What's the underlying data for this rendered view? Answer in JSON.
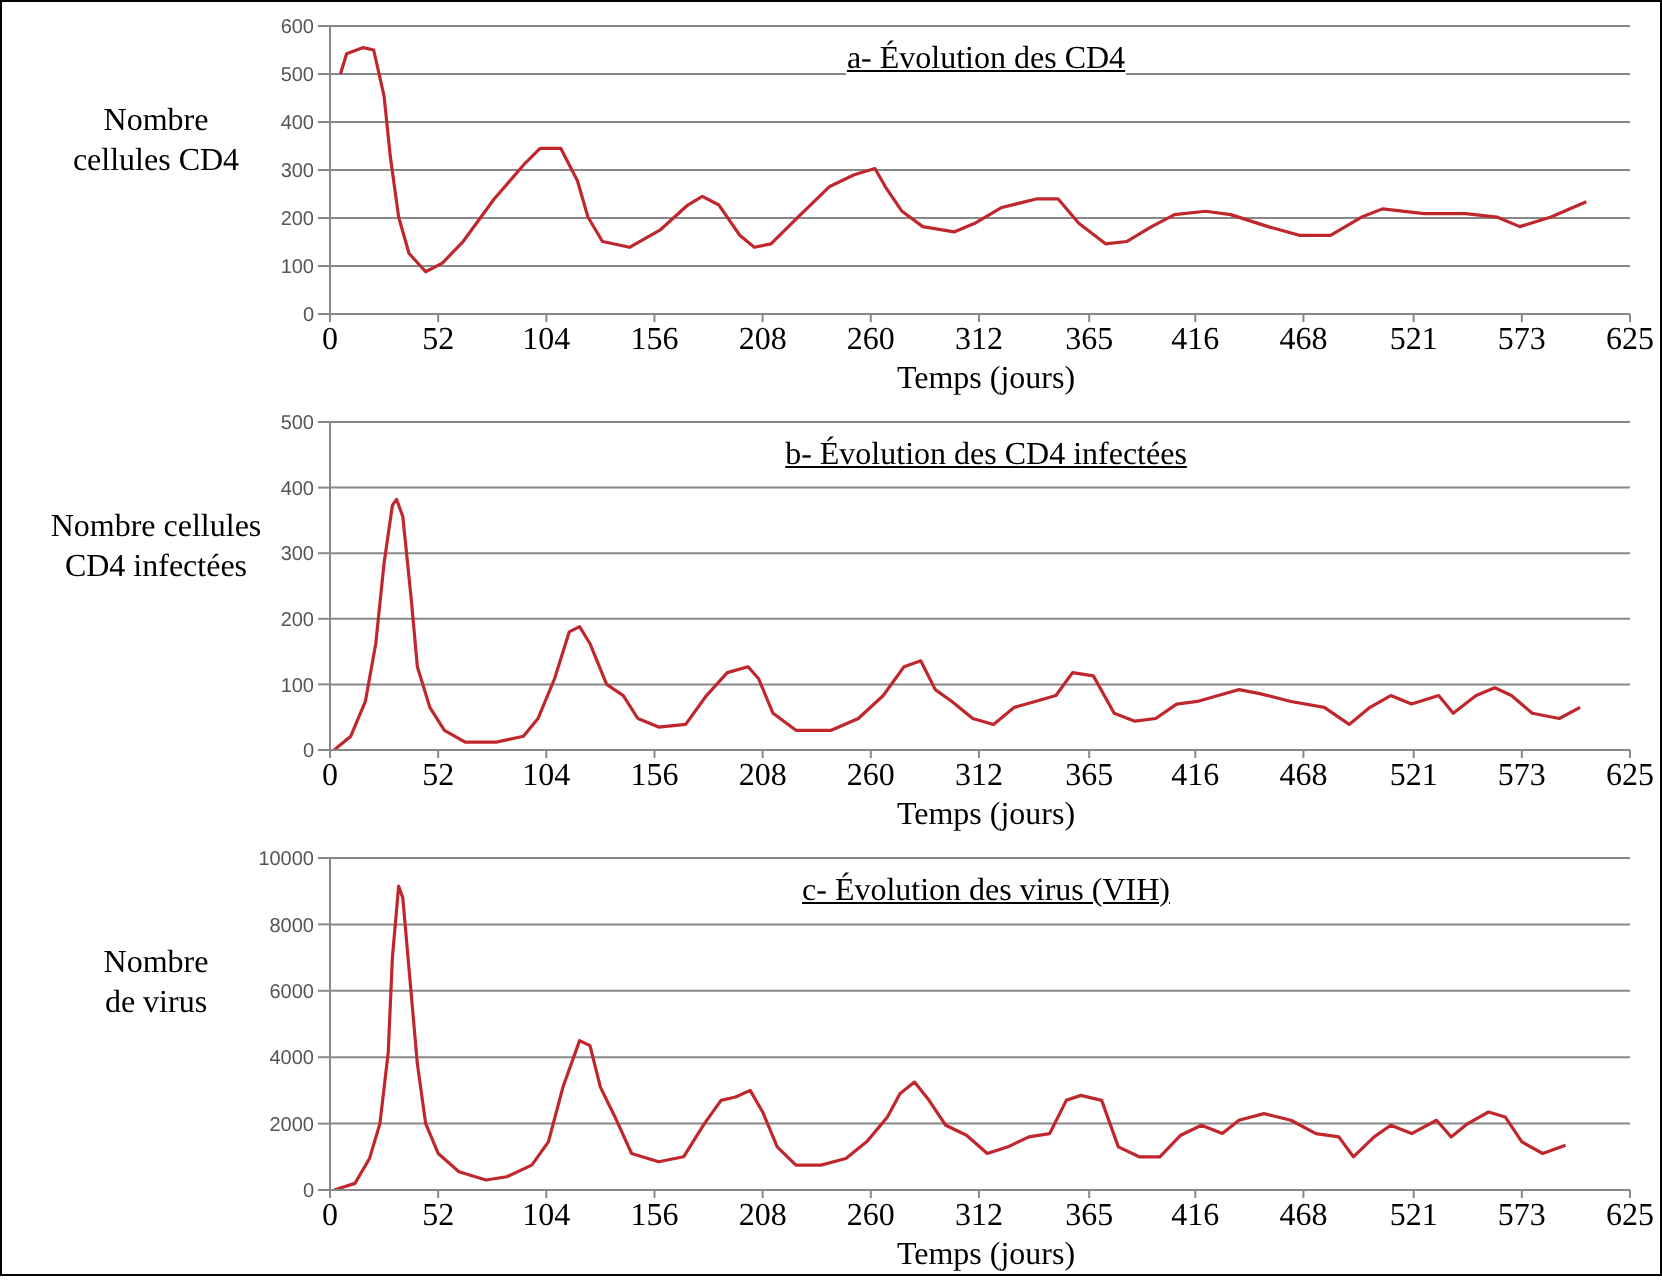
{
  "chart_data": [
    {
      "type": "line",
      "title": "a- Évolution des CD4",
      "xlabel": "Temps (jours)",
      "ylabel": "Nombre\ncellules CD4",
      "color": "#c0272d",
      "grid": "y",
      "xlim": [
        0,
        625
      ],
      "xticks": [
        0,
        52,
        104,
        156,
        208,
        260,
        312,
        365,
        416,
        468,
        521,
        573,
        625
      ],
      "ylim": [
        0,
        600
      ],
      "yticks": [
        0,
        100,
        200,
        300,
        400,
        500,
        600
      ],
      "x": [
        5,
        8,
        16,
        21,
        26,
        29,
        33,
        38,
        46,
        54,
        64,
        79,
        94,
        101,
        111,
        119,
        124,
        131,
        144,
        159,
        172,
        179,
        187,
        197,
        204,
        212,
        225,
        240,
        252,
        262,
        267,
        275,
        285,
        300,
        310,
        323,
        340,
        350,
        360,
        373,
        383,
        395,
        406,
        421,
        433,
        451,
        466,
        481,
        496,
        506,
        526,
        546,
        561,
        572,
        587,
        604
      ],
      "values": [
        500,
        542,
        555,
        550,
        454,
        328,
        202,
        126,
        88,
        106,
        151,
        240,
        315,
        345,
        345,
        277,
        202,
        151,
        139,
        176,
        227,
        245,
        227,
        164,
        139,
        146,
        202,
        265,
        290,
        303,
        265,
        214,
        182,
        171,
        189,
        222,
        240,
        240,
        189,
        146,
        151,
        182,
        207,
        214,
        207,
        182,
        164,
        164,
        202,
        219,
        209,
        209,
        202,
        182,
        202,
        234
      ]
    },
    {
      "type": "line",
      "title": "b- Évolution des CD4 infectées",
      "xlabel": "Temps (jours)",
      "ylabel": "Nombre cellules\nCD4 infectées",
      "color": "#c0272d",
      "grid": "y",
      "xlim": [
        0,
        625
      ],
      "xticks": [
        0,
        52,
        104,
        156,
        208,
        260,
        312,
        365,
        416,
        468,
        521,
        573,
        625
      ],
      "ylim": [
        0,
        500
      ],
      "yticks": [
        0,
        100,
        200,
        300,
        400,
        500
      ],
      "x": [
        2,
        10,
        17,
        22,
        26,
        30,
        32,
        35,
        39,
        42,
        48,
        55,
        65,
        80,
        93,
        100,
        108,
        115,
        120,
        125,
        133,
        141,
        148,
        158,
        171,
        181,
        191,
        201,
        206,
        213,
        224,
        241,
        254,
        266,
        276,
        284,
        291,
        299,
        309,
        319,
        329,
        339,
        349,
        357,
        367,
        377,
        387,
        397,
        407,
        417,
        427,
        437,
        447,
        462,
        478,
        490,
        500,
        510,
        520,
        533,
        540,
        551,
        560,
        568,
        578,
        591,
        601
      ],
      "values": [
        0,
        21,
        74,
        162,
        285,
        373,
        382,
        356,
        232,
        127,
        65,
        30,
        12,
        12,
        21,
        48,
        109,
        180,
        188,
        162,
        100,
        83,
        48,
        35,
        39,
        83,
        118,
        127,
        109,
        56,
        30,
        30,
        48,
        83,
        127,
        136,
        92,
        74,
        48,
        39,
        65,
        74,
        83,
        118,
        113,
        56,
        44,
        48,
        70,
        74,
        83,
        92,
        86,
        74,
        65,
        39,
        65,
        83,
        70,
        83,
        56,
        83,
        95,
        83,
        56,
        48,
        65
      ]
    },
    {
      "type": "line",
      "title": "c- Évolution des virus (VIH)",
      "xlabel": "Temps (jours)",
      "ylabel": "Nombre\nde virus",
      "color": "#c0272d",
      "grid": "y",
      "xlim": [
        0,
        625
      ],
      "xticks": [
        0,
        52,
        104,
        156,
        208,
        260,
        312,
        365,
        416,
        468,
        521,
        573,
        625
      ],
      "ylim": [
        0,
        10000
      ],
      "yticks": [
        0,
        2000,
        4000,
        6000,
        8000,
        10000
      ],
      "x": [
        2,
        12,
        19,
        24,
        28,
        30,
        33,
        35,
        38,
        42,
        46,
        52,
        62,
        75,
        85,
        97,
        105,
        112,
        120,
        125,
        130,
        137,
        145,
        158,
        170,
        180,
        188,
        195,
        202,
        208,
        215,
        224,
        236,
        248,
        258,
        268,
        274,
        281,
        288,
        296,
        306,
        316,
        326,
        336,
        346,
        354,
        361,
        371,
        379,
        389,
        399,
        409,
        419,
        429,
        437,
        449,
        462,
        474,
        485,
        492,
        502,
        510,
        520,
        532,
        539,
        547,
        557,
        565,
        573,
        583,
        594
      ],
      "values": [
        0,
        200,
        950,
        2000,
        4150,
        7000,
        9150,
        8800,
        6650,
        3800,
        2000,
        1100,
        550,
        300,
        400,
        750,
        1450,
        3100,
        4500,
        4350,
        3100,
        2200,
        1100,
        850,
        1000,
        2000,
        2700,
        2800,
        3000,
        2350,
        1300,
        750,
        750,
        950,
        1450,
        2200,
        2900,
        3250,
        2700,
        1950,
        1650,
        1100,
        1300,
        1600,
        1700,
        2700,
        2850,
        2700,
        1300,
        1000,
        1000,
        1650,
        1950,
        1700,
        2100,
        2300,
        2100,
        1700,
        1600,
        1000,
        1600,
        1950,
        1700,
        2100,
        1600,
        2000,
        2350,
        2200,
        1450,
        1100,
        1350
      ]
    }
  ]
}
